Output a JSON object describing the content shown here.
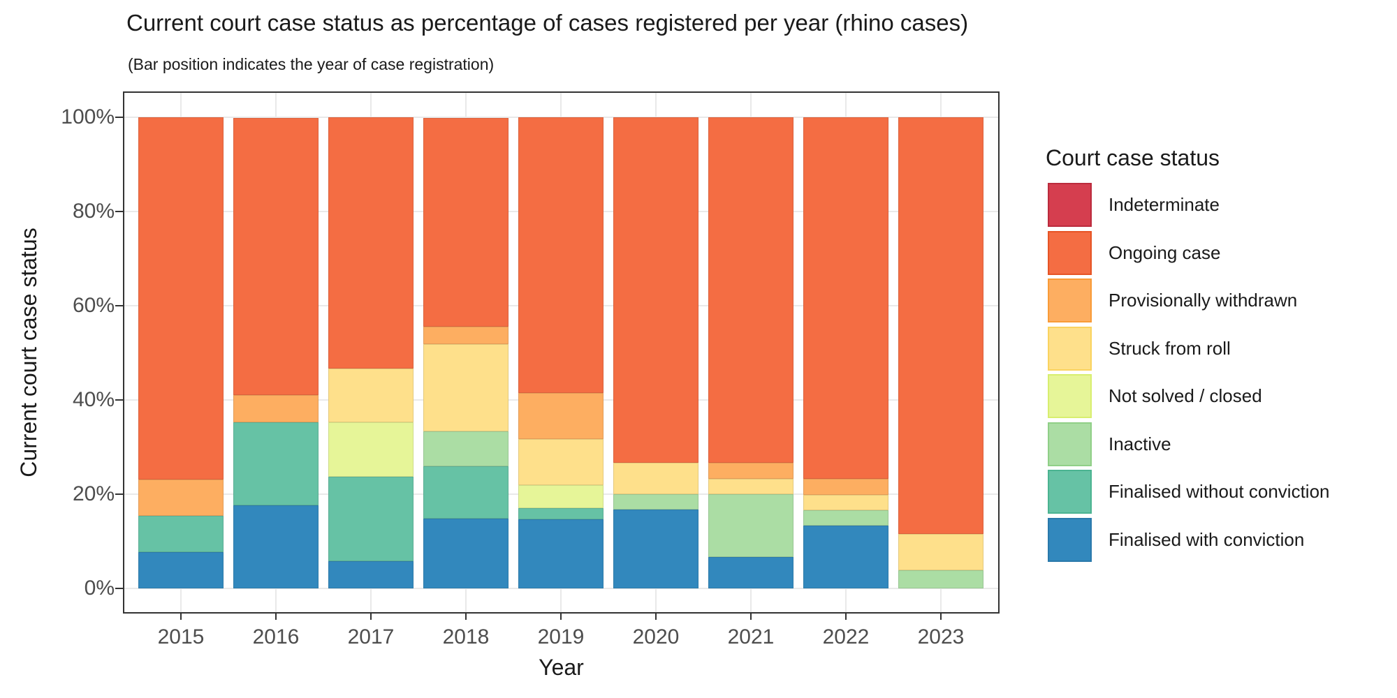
{
  "title": "Current court case status as percentage of cases registered per year (rhino cases)",
  "subtitle": "(Bar position indicates the year of case registration)",
  "axes": {
    "x_label": "Year",
    "y_label": "Current court case status",
    "y_ticks": [
      {
        "label": "0%",
        "value": 0
      },
      {
        "label": "20%",
        "value": 20
      },
      {
        "label": "40%",
        "value": 40
      },
      {
        "label": "60%",
        "value": 60
      },
      {
        "label": "80%",
        "value": 80
      },
      {
        "label": "100%",
        "value": 100
      }
    ]
  },
  "legend": {
    "title": "Court case status"
  },
  "chart_data": {
    "type": "bar",
    "stacked": true,
    "unit": "percent of cases registered per year",
    "title": "Current court case status as percentage of cases registered per year (rhino cases)",
    "xlabel": "Year",
    "ylabel": "Current court case status",
    "ylim": [
      0,
      100
    ],
    "grid": true,
    "legend_position": "right",
    "stack_order": "reverse of series list (last series at bottom of bar)",
    "categories": [
      "2015",
      "2016",
      "2017",
      "2018",
      "2019",
      "2020",
      "2021",
      "2022",
      "2023"
    ],
    "series": [
      {
        "name": "Indeterminate",
        "color": "#D53E4F",
        "border": "#BB2B3D",
        "values": [
          0,
          0,
          0,
          0,
          0,
          0,
          0,
          0,
          0
        ]
      },
      {
        "name": "Ongoing case",
        "color": "#F46D43",
        "border": "#E65425",
        "values": [
          76.9,
          58.8,
          53.3,
          44.4,
          58.5,
          73.3,
          73.4,
          76.8,
          88.5
        ]
      },
      {
        "name": "Provisionally withdrawn",
        "color": "#FDAE61",
        "border": "#F99B37",
        "values": [
          7.7,
          5.9,
          0,
          3.7,
          9.8,
          0,
          3.3,
          3.3,
          0
        ]
      },
      {
        "name": "Struck from roll",
        "color": "#FEE08B",
        "border": "#FAD35F",
        "values": [
          0,
          0,
          11.5,
          18.5,
          9.8,
          6.7,
          3.3,
          3.3,
          7.7
        ]
      },
      {
        "name": "Not solved / closed",
        "color": "#E6F598",
        "border": "#D8EE6F",
        "values": [
          0,
          0,
          11.5,
          0,
          4.9,
          0,
          0,
          0,
          0
        ]
      },
      {
        "name": "Inactive",
        "color": "#ABDDA4",
        "border": "#90CF87",
        "values": [
          0,
          0,
          0,
          7.4,
          0,
          3.3,
          13.3,
          3.3,
          3.8
        ]
      },
      {
        "name": "Finalised without conviction",
        "color": "#66C2A5",
        "border": "#4BB391",
        "values": [
          7.7,
          17.6,
          17.9,
          11.1,
          2.4,
          0,
          0,
          0,
          0
        ]
      },
      {
        "name": "Finalised with conviction",
        "color": "#3288BD",
        "border": "#2A79AB",
        "values": [
          7.7,
          17.6,
          5.8,
          14.8,
          14.6,
          16.7,
          6.7,
          13.3,
          0
        ]
      }
    ]
  }
}
